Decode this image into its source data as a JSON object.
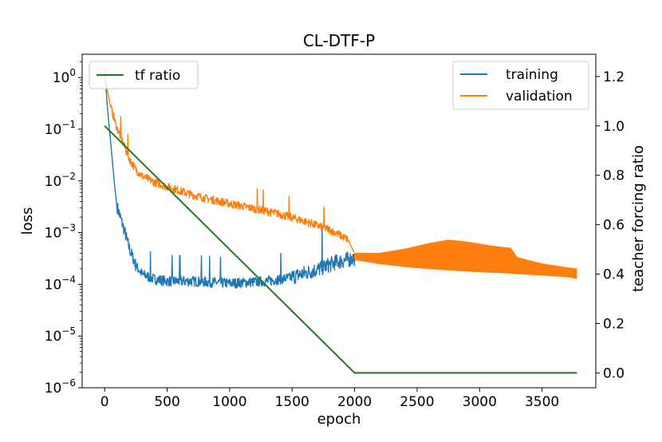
{
  "chart_data": {
    "type": "line",
    "title": "CL-DTF-P",
    "xlabel": "epoch",
    "ylabel": "loss",
    "y2label": "teacher forcing ratio",
    "xlim": [
      -180,
      3930
    ],
    "ylim": [
      -6,
      0.45
    ],
    "y_scale": "log",
    "y2lim": [
      -0.06,
      1.29
    ],
    "grid": false,
    "x_ticks": [
      0,
      500,
      1000,
      1500,
      2000,
      2500,
      3000,
      3500
    ],
    "y_ticks": [
      {
        "base": "10",
        "exp": "0",
        "value": 1
      },
      {
        "base": "10",
        "exp": "−1",
        "value": 0.1
      },
      {
        "base": "10",
        "exp": "−2",
        "value": 0.01
      },
      {
        "base": "10",
        "exp": "−3",
        "value": 0.001
      },
      {
        "base": "10",
        "exp": "−4",
        "value": 0.0001
      },
      {
        "base": "10",
        "exp": "−5",
        "value": 1e-05
      },
      {
        "base": "10",
        "exp": "−6",
        "value": 1e-06
      }
    ],
    "y2_ticks": [
      "0.0",
      "0.2",
      "0.4",
      "0.6",
      "0.8",
      "1.0",
      "1.2"
    ],
    "legend_left": {
      "placement": "upper-left",
      "entries": [
        "tf ratio"
      ]
    },
    "legend_right": {
      "placement": "upper-right",
      "entries": [
        "training",
        "validation"
      ]
    },
    "series": [
      {
        "name": "training",
        "axis": "left",
        "color": "#1f77b4",
        "x": [
          0,
          20,
          50,
          80,
          100,
          150,
          200,
          250,
          300,
          400,
          500,
          700,
          1000,
          1300,
          1500,
          1700,
          1850,
          2000,
          2200,
          2500,
          2800,
          3100,
          3400,
          3700,
          3780
        ],
        "y": [
          1.5,
          0.3,
          0.05,
          0.008,
          0.003,
          0.0012,
          0.00045,
          0.00022,
          0.00015,
          0.00012,
          0.00011,
          0.00011,
          0.0001,
          0.00011,
          0.00013,
          0.00018,
          0.00025,
          0.0003,
          0.00028,
          0.00024,
          0.0002,
          0.00018,
          0.00017,
          0.00016,
          0.00014
        ],
        "noise": [
          {
            "from": 100,
            "to": 250,
            "amp": 0.12
          },
          {
            "from": 250,
            "to": 1500,
            "amp": 0.1
          },
          {
            "from": 1500,
            "to": 2000,
            "amp": 0.15
          }
        ]
      },
      {
        "name": "validation",
        "axis": "left",
        "color": "#ff7f0e",
        "x": [
          0,
          20,
          50,
          100,
          150,
          200,
          250,
          300,
          400,
          500,
          600,
          700,
          800,
          1000,
          1200,
          1400,
          1600,
          1800,
          1950,
          2000,
          2200,
          2400,
          2600,
          2750,
          2900,
          3100,
          3250,
          3300,
          3500,
          3700,
          3780
        ],
        "y": [
          1.5,
          0.6,
          0.25,
          0.1,
          0.05,
          0.025,
          0.016,
          0.012,
          0.009,
          0.0075,
          0.0062,
          0.0052,
          0.0045,
          0.0035,
          0.0028,
          0.0022,
          0.0016,
          0.0011,
          0.0007,
          0.0004,
          0.0003,
          0.00033,
          0.00043,
          0.00047,
          0.00044,
          0.00036,
          0.0003,
          0.00024,
          0.0002,
          0.00017,
          0.00016
        ],
        "noise": [
          {
            "from": 50,
            "to": 1950,
            "amp": 0.08
          }
        ],
        "band": {
          "x": [
            2000,
            2200,
            2400,
            2600,
            2750,
            2900,
            3100,
            3250,
            3300,
            3500,
            3700,
            3780
          ],
          "low": [
            0.0003,
            0.00025,
            0.00022,
            0.0002,
            0.00019,
            0.00018,
            0.00017,
            0.000165,
            0.00016,
            0.00015,
            0.00014,
            0.00013
          ],
          "high": [
            0.0004,
            0.0004,
            0.00048,
            0.00062,
            0.00072,
            0.00066,
            0.00055,
            0.0005,
            0.00033,
            0.00025,
            0.00021,
            0.0002
          ]
        }
      },
      {
        "name": "tf ratio",
        "axis": "right",
        "color": "#1e7a1e",
        "x": [
          0,
          2000,
          3780
        ],
        "y": [
          1.0,
          0.0,
          0.0
        ]
      }
    ]
  }
}
